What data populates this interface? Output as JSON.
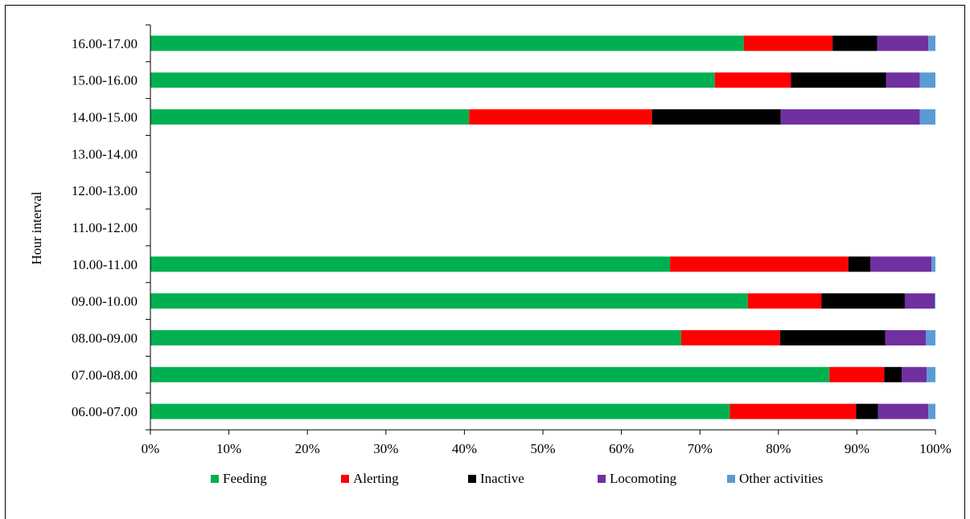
{
  "chart_data": {
    "type": "bar",
    "orientation": "horizontal",
    "stacked": "percent",
    "title": "",
    "xlabel": "",
    "ylabel": "Hour interval",
    "xlim": [
      0,
      100
    ],
    "x_ticks": [
      "0%",
      "10%",
      "20%",
      "30%",
      "40%",
      "50%",
      "60%",
      "70%",
      "80%",
      "90%",
      "100%"
    ],
    "grid": false,
    "legend_position": "bottom",
    "categories": [
      "06.00-07.00",
      "07.00-08.00",
      "08.00-09.00",
      "09.00-10.00",
      "10.00-11.00",
      "11.00-12.00",
      "12.00-13.00",
      "13.00-14.00",
      "14.00-15.00",
      "15.00-16.00",
      "16.00-17.00"
    ],
    "series": [
      {
        "name": "Feeding",
        "color": "#00b050",
        "values": [
          73.8,
          86.5,
          67.6,
          76.1,
          66.2,
          0,
          0,
          0,
          40.6,
          71.9,
          75.6
        ]
      },
      {
        "name": "Alerting",
        "color": "#ff0000",
        "values": [
          16.1,
          7.0,
          12.6,
          9.4,
          22.7,
          0,
          0,
          0,
          23.3,
          9.7,
          11.3
        ]
      },
      {
        "name": "Inactive",
        "color": "#000000",
        "values": [
          2.8,
          2.2,
          13.4,
          10.6,
          2.8,
          0,
          0,
          0,
          16.4,
          12.1,
          5.7
        ]
      },
      {
        "name": "Locomoting",
        "color": "#7030a0",
        "values": [
          6.4,
          3.2,
          5.2,
          3.8,
          7.8,
          0,
          0,
          0,
          17.7,
          4.3,
          6.5
        ]
      },
      {
        "name": "Other activities",
        "color": "#5b9bd5",
        "values": [
          0.9,
          1.1,
          1.2,
          0.1,
          0.5,
          0,
          0,
          0,
          2.0,
          2.0,
          0.9
        ]
      }
    ]
  }
}
